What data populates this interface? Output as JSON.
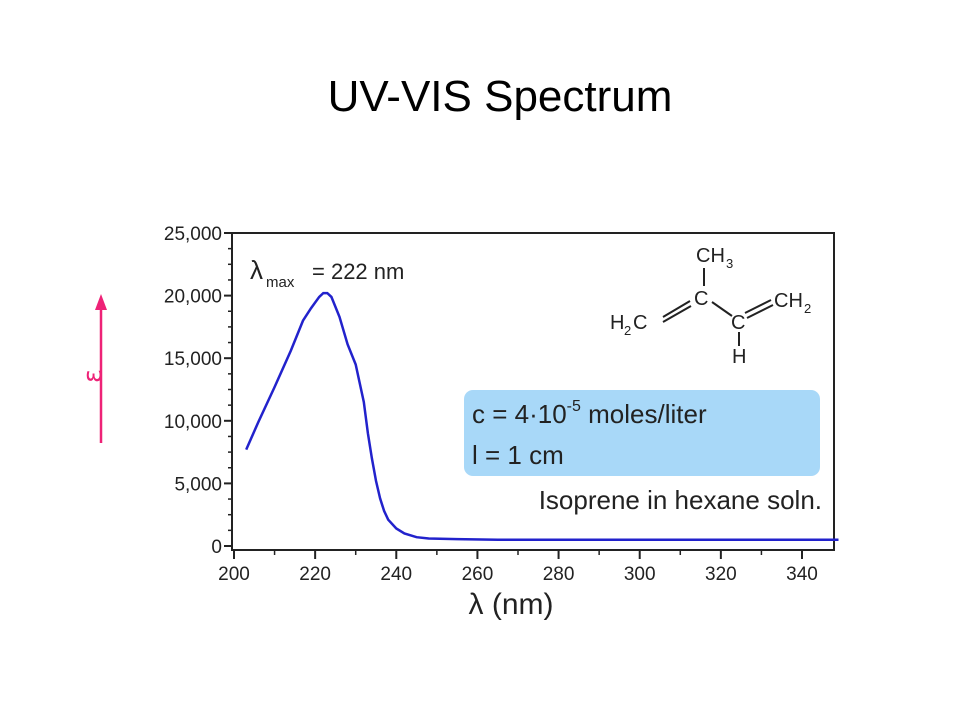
{
  "slide": {
    "title": "UV-VIS Spectrum"
  },
  "chart_data": {
    "type": "line",
    "xlabel": "λ (nm)",
    "ylabel": "ε",
    "xlim": [
      200,
      350
    ],
    "ylim": [
      0,
      25000
    ],
    "x_ticks": [
      "200",
      "220",
      "240",
      "260",
      "280",
      "300",
      "320",
      "340"
    ],
    "y_ticks": [
      "0",
      "5,000",
      "10,000",
      "15,000",
      "20,000",
      "25,000"
    ],
    "x_tick_values": [
      200,
      220,
      240,
      260,
      280,
      300,
      320,
      340
    ],
    "y_tick_values": [
      0,
      5000,
      10000,
      15000,
      20000,
      25000
    ],
    "series": [
      {
        "color": "#2222cc",
        "x": [
          203,
          206,
          210,
          214,
          217,
          219,
          221,
          222,
          223,
          224,
          226,
          228,
          230,
          232,
          233,
          234,
          235,
          236,
          237,
          238,
          240,
          242,
          245,
          248,
          255,
          265,
          280,
          300,
          320,
          340,
          349
        ],
        "y": [
          7700,
          9900,
          12700,
          15600,
          18000,
          19000,
          19900,
          20200,
          20200,
          19900,
          18300,
          16100,
          14500,
          11500,
          9000,
          7000,
          5200,
          3800,
          2800,
          2100,
          1400,
          1000,
          700,
          600,
          550,
          500,
          500,
          500,
          500,
          500,
          500
        ]
      }
    ],
    "annotation_lambda": {
      "symbol": "λ",
      "subscript": "max",
      "value_text": "= 222 nm"
    },
    "info_box": {
      "line1_prefix": "c = 4·10",
      "line1_exponent": "-5",
      "line1_suffix": " moles/liter",
      "line2": "l = 1 cm",
      "caption": "Isoprene in hexane soln.",
      "fill_color": "#a8d8f8"
    },
    "molecule": {
      "ch3": "CH",
      "ch3_sub": "3",
      "c_center": "C",
      "c_right": "C",
      "h2c_left": "H",
      "h2c_left_sub": "2",
      "h2c_left_c": "C",
      "ch2_right": "CH",
      "ch2_right_sub": "2",
      "h_bottom": "H"
    },
    "axis_color": "#222222",
    "arrow_color": "#ee2277"
  }
}
